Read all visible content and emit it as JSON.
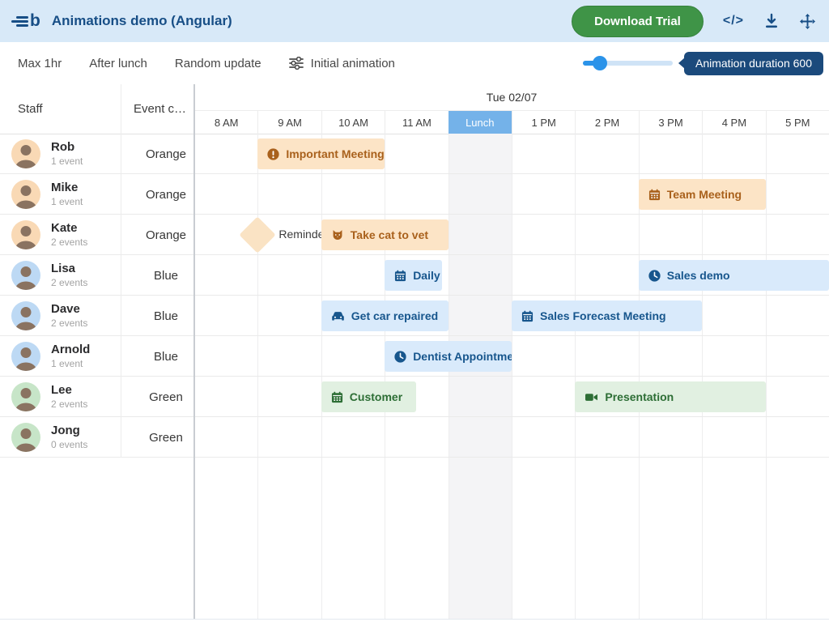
{
  "header": {
    "title": "Animations demo (Angular)",
    "logo_text": "b",
    "download_label": "Download Trial",
    "icons": [
      "code-icon",
      "download-icon",
      "move-icon"
    ]
  },
  "toolbar": {
    "buttons": [
      "Max 1hr",
      "After lunch",
      "Random update"
    ],
    "initial_label": "Initial animation",
    "duration_label": "Animation duration 600"
  },
  "colors": {
    "header_bg": "#d8e9f8",
    "brand_navy": "#174e86",
    "trial_green": "#3f9447",
    "slider_blue": "#2b93e9",
    "badge_navy": "#1b4a7c",
    "lunch_header": "#74b2e9",
    "lunch_body": "#f4f4f6"
  },
  "palettes": {
    "orange": {
      "bg": "#fce4c6",
      "fg": "#a9611c",
      "avatar_bg": "#f9d9b5"
    },
    "blue": {
      "bg": "#d9eafb",
      "fg": "#17568d",
      "avatar_bg": "#bdd9f4"
    },
    "green": {
      "bg": "#e1f0e1",
      "fg": "#2d6e35",
      "avatar_bg": "#c7e5c8"
    }
  },
  "scheduler": {
    "columns": {
      "staff": "Staff",
      "event_color": "Event c…"
    },
    "date_header": "Tue 02/07",
    "time_cells": [
      {
        "label": "8 AM"
      },
      {
        "label": "9 AM"
      },
      {
        "label": "10 AM"
      },
      {
        "label": "11 AM"
      },
      {
        "label": "Lunch",
        "highlight": true
      },
      {
        "label": "1 PM"
      },
      {
        "label": "2 PM"
      },
      {
        "label": "3 PM"
      },
      {
        "label": "4 PM"
      },
      {
        "label": "5 PM"
      }
    ],
    "rows": [
      {
        "name": "Rob",
        "count_label": "1 event",
        "color_label": "Orange",
        "palette": "orange",
        "events": [
          {
            "label": "Important Meeting",
            "icon": "warning-icon",
            "start": 9,
            "end": 11
          }
        ]
      },
      {
        "name": "Mike",
        "count_label": "1 event",
        "color_label": "Orange",
        "palette": "orange",
        "events": [
          {
            "label": "Team Meeting",
            "icon": "calendar-icon",
            "start": 15,
            "end": 17
          }
        ]
      },
      {
        "name": "Kate",
        "count_label": "2 events",
        "color_label": "Orange",
        "palette": "orange",
        "events": [
          {
            "label": "Reminder",
            "type": "milestone",
            "start": 9
          },
          {
            "label": "Take cat to vet",
            "icon": "cat-icon",
            "start": 10,
            "end": 12
          }
        ]
      },
      {
        "name": "Lisa",
        "count_label": "2 events",
        "color_label": "Blue",
        "palette": "blue",
        "events": [
          {
            "label": "Daily",
            "icon": "calendar-icon",
            "start": 11,
            "end": 11.9
          },
          {
            "label": "Sales demo",
            "icon": "clock-icon",
            "start": 15,
            "end": 18
          }
        ]
      },
      {
        "name": "Dave",
        "count_label": "2 events",
        "color_label": "Blue",
        "palette": "blue",
        "events": [
          {
            "label": "Get car repaired",
            "icon": "car-icon",
            "start": 10,
            "end": 12
          },
          {
            "label": "Sales Forecast Meeting",
            "icon": "calendar-icon",
            "start": 13,
            "end": 16
          }
        ]
      },
      {
        "name": "Arnold",
        "count_label": "1 event",
        "color_label": "Blue",
        "palette": "blue",
        "events": [
          {
            "label": "Dentist Appointment",
            "icon": "clock-icon",
            "start": 11,
            "end": 13
          }
        ]
      },
      {
        "name": "Lee",
        "count_label": "2 events",
        "color_label": "Green",
        "palette": "green",
        "events": [
          {
            "label": "Customer",
            "icon": "calendar-icon",
            "start": 10,
            "end": 11.5
          },
          {
            "label": "Presentation",
            "icon": "video-icon",
            "start": 14,
            "end": 17
          }
        ]
      },
      {
        "name": "Jong",
        "count_label": "0 events",
        "color_label": "Green",
        "palette": "green",
        "events": []
      }
    ]
  }
}
